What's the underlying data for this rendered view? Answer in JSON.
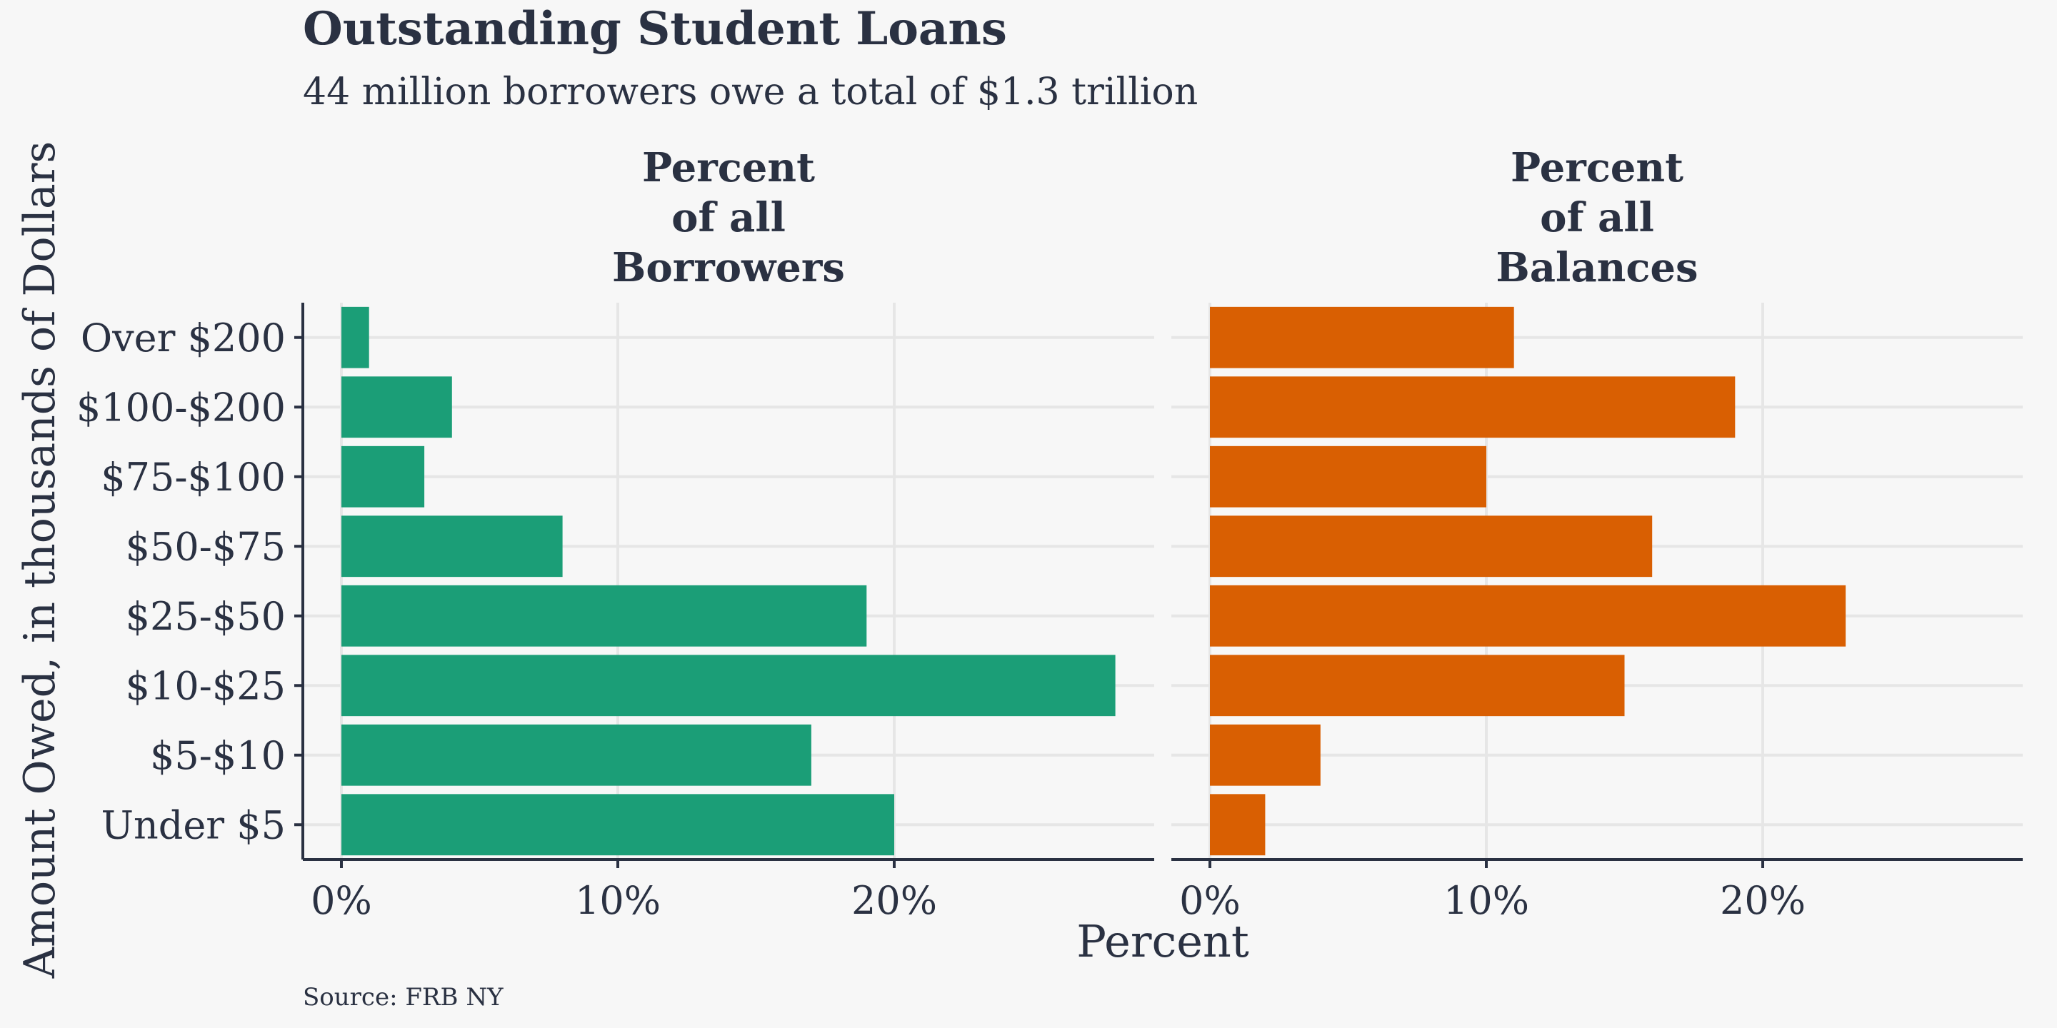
{
  "chart_data": {
    "type": "bar",
    "orientation": "horizontal",
    "title": "Outstanding Student Loans",
    "subtitle": "44 million borrowers owe a total of $1.3 trillion",
    "ylabel": "Amount Owed, in thousands of Dollars",
    "xlabel": "Percent",
    "caption": "Source: FRB NY",
    "categories": [
      "Under $5",
      "$5-$10",
      "$10-$25",
      "$25-$50",
      "$50-$75",
      "$75-$100",
      "$100-$200",
      "Over $200"
    ],
    "xlim": [
      0,
      30
    ],
    "xticks": [
      0,
      10,
      20
    ],
    "xtick_labels": [
      "0%",
      "10%",
      "20%"
    ],
    "grid": true,
    "panels": [
      {
        "title_lines": [
          "Percent",
          "of all",
          "Borrowers"
        ],
        "color": "#1b9e77",
        "values": [
          20,
          17,
          28,
          19,
          8,
          3,
          4,
          1
        ]
      },
      {
        "title_lines": [
          "Percent",
          "of all",
          "Balances"
        ],
        "color": "#d95f02",
        "values": [
          2,
          4,
          15,
          23,
          16,
          10,
          19,
          11
        ]
      }
    ]
  }
}
